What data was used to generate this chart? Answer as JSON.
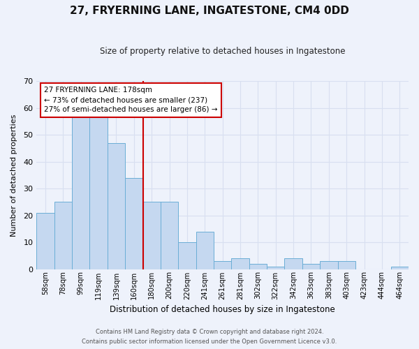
{
  "title": "27, FRYERNING LANE, INGATESTONE, CM4 0DD",
  "subtitle": "Size of property relative to detached houses in Ingatestone",
  "xlabel": "Distribution of detached houses by size in Ingatestone",
  "ylabel": "Number of detached properties",
  "categories": [
    "58sqm",
    "78sqm",
    "99sqm",
    "119sqm",
    "139sqm",
    "160sqm",
    "180sqm",
    "200sqm",
    "220sqm",
    "241sqm",
    "261sqm",
    "281sqm",
    "302sqm",
    "322sqm",
    "342sqm",
    "363sqm",
    "383sqm",
    "403sqm",
    "423sqm",
    "444sqm",
    "464sqm"
  ],
  "values": [
    21,
    25,
    58,
    58,
    47,
    34,
    25,
    25,
    10,
    14,
    3,
    4,
    2,
    1,
    4,
    2,
    3,
    3,
    0,
    0,
    1
  ],
  "bar_color": "#c5d8f0",
  "bar_edge_color": "#6baed6",
  "ref_line_label": "27 FRYERNING LANE: 178sqm",
  "annotation_line1": "← 73% of detached houses are smaller (237)",
  "annotation_line2": "27% of semi-detached houses are larger (86) →",
  "annotation_box_color": "#ffffff",
  "annotation_box_edge_color": "#cc0000",
  "ref_line_color": "#cc0000",
  "footer1": "Contains HM Land Registry data © Crown copyright and database right 2024.",
  "footer2": "Contains public sector information licensed under the Open Government Licence v3.0.",
  "bg_color": "#eef2fb",
  "grid_color": "#d8dff0",
  "ylim": [
    0,
    70
  ],
  "ref_bin_index": 6
}
